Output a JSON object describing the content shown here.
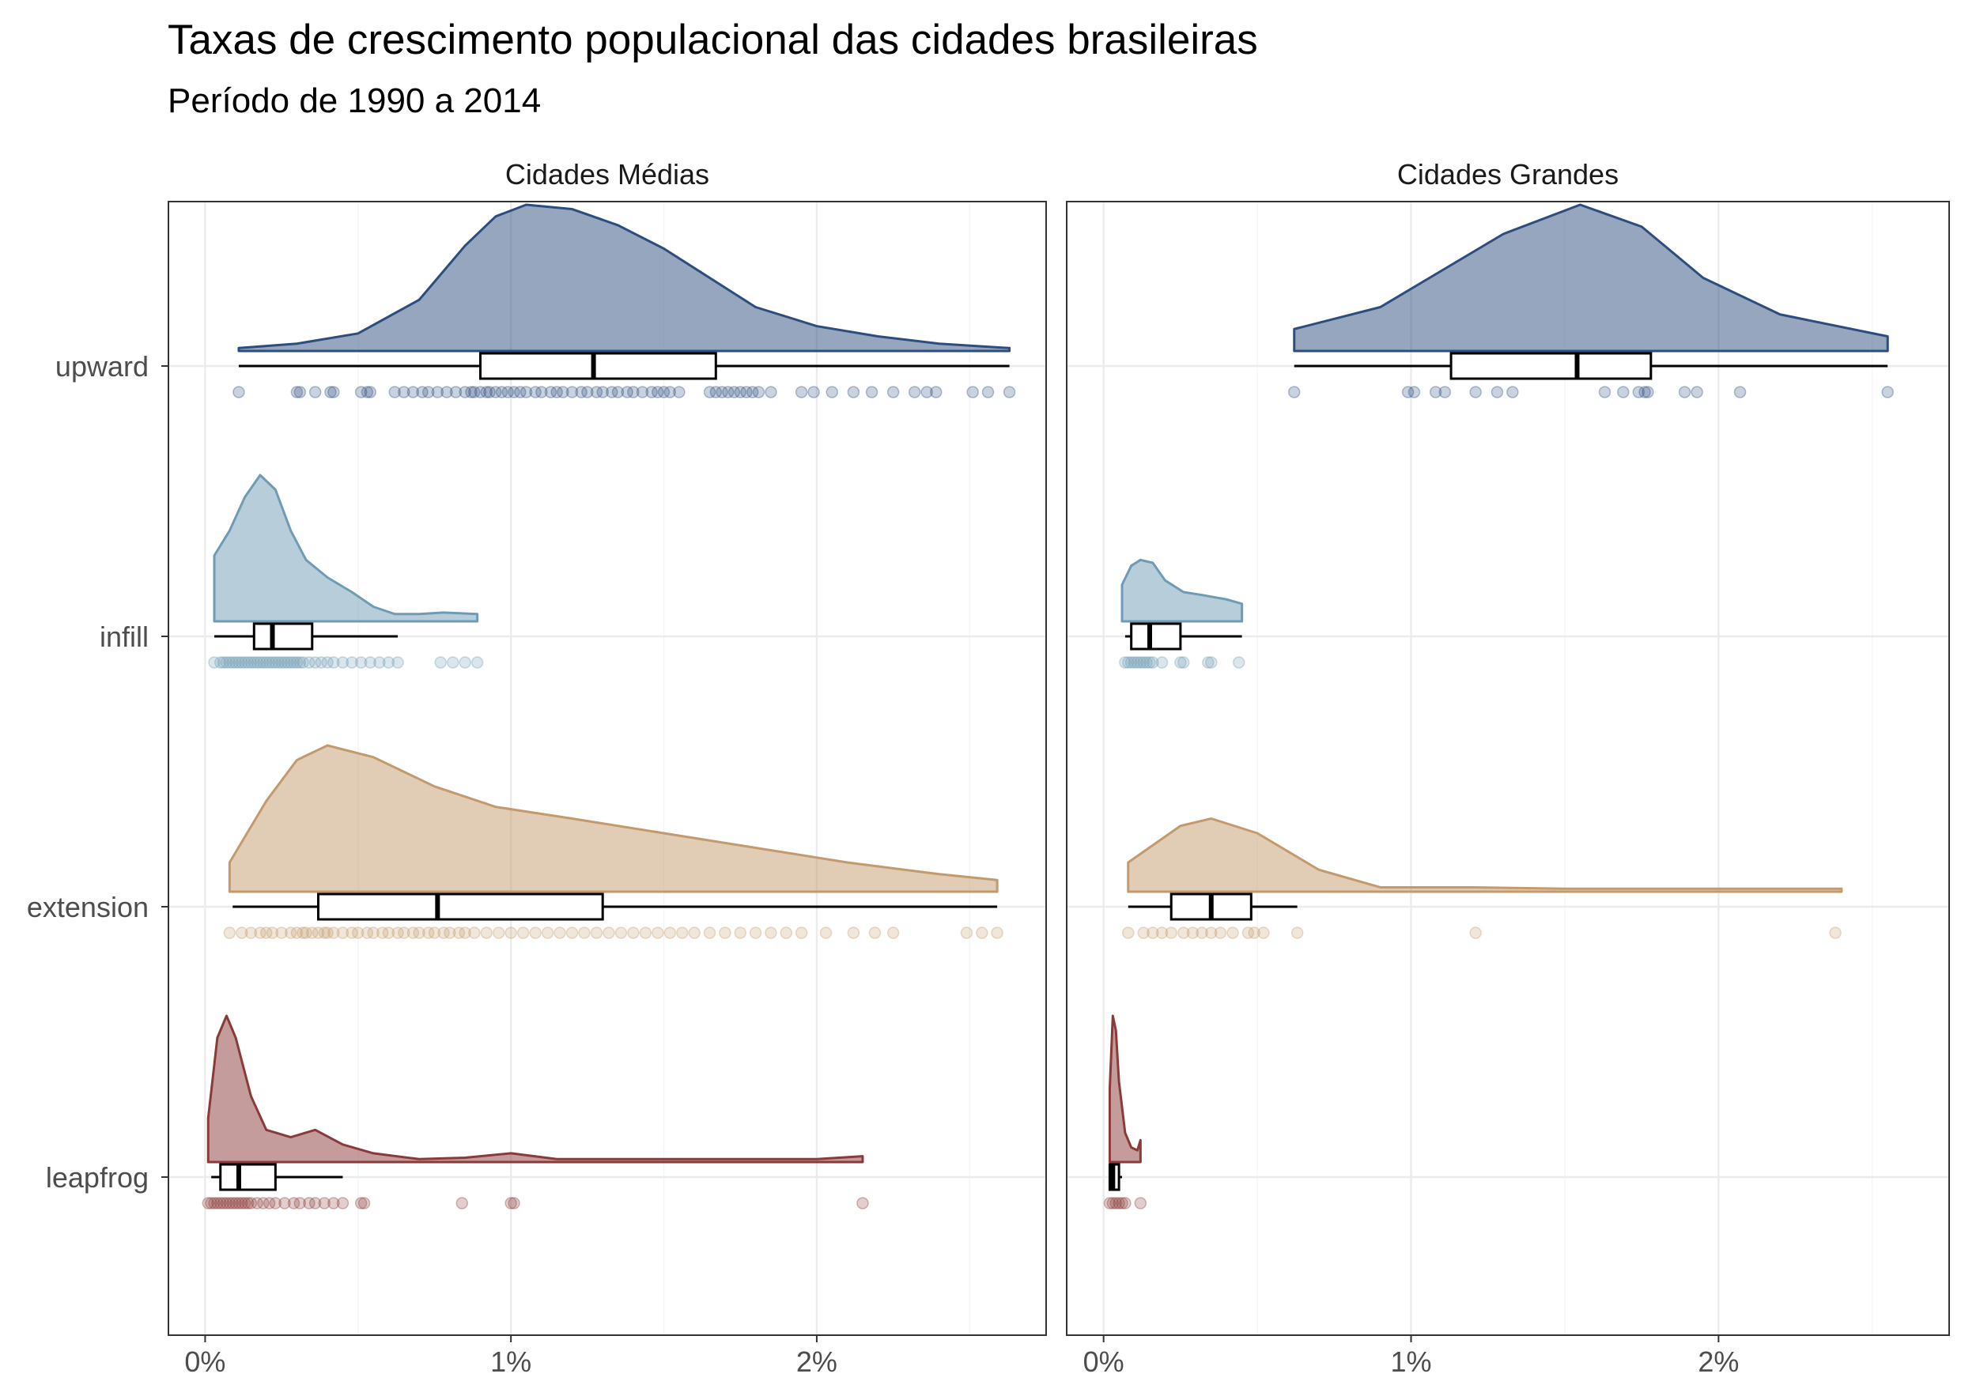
{
  "chart_data": {
    "type": "raincloud",
    "title": "Taxas de crescimento populacional das cidades brasileiras",
    "subtitle": "Período de 1990 a 2014",
    "xlim": [
      -0.0012,
      0.0275
    ],
    "x_ticks": [
      0,
      0.01,
      0.02
    ],
    "x_tick_labels": [
      "0%",
      "1%",
      "2%"
    ],
    "categories": [
      "upward",
      "infill",
      "extension",
      "leapfrog"
    ],
    "colors": {
      "upward": "#2d4d7e",
      "infill": "#6f9bb5",
      "extension": "#c49a6c",
      "leapfrog": "#8b3a3a"
    },
    "grid": true,
    "legend": "none",
    "panels": [
      {
        "label": "Cidades Médias",
        "series": [
          {
            "category": "upward",
            "box": {
              "min": 0.0011,
              "q1": 0.009,
              "median": 0.0127,
              "q3": 0.0167,
              "max": 0.0263
            },
            "density": [
              [
                0.0011,
                0.02
              ],
              [
                0.003,
                0.05
              ],
              [
                0.005,
                0.12
              ],
              [
                0.007,
                0.35
              ],
              [
                0.0085,
                0.72
              ],
              [
                0.0095,
                0.92
              ],
              [
                0.0105,
                1.0
              ],
              [
                0.012,
                0.97
              ],
              [
                0.0135,
                0.86
              ],
              [
                0.015,
                0.7
              ],
              [
                0.0165,
                0.5
              ],
              [
                0.018,
                0.3
              ],
              [
                0.02,
                0.17
              ],
              [
                0.022,
                0.1
              ],
              [
                0.024,
                0.05
              ],
              [
                0.0263,
                0.02
              ]
            ],
            "points": [
              0.0011,
              0.003,
              0.0031,
              0.0036,
              0.0041,
              0.0042,
              0.0051,
              0.0053,
              0.0054,
              0.0062,
              0.0065,
              0.0068,
              0.0071,
              0.0073,
              0.0076,
              0.0079,
              0.0082,
              0.0085,
              0.0087,
              0.0088,
              0.009,
              0.0092,
              0.0093,
              0.0095,
              0.0097,
              0.0099,
              0.0101,
              0.0103,
              0.0105,
              0.0108,
              0.011,
              0.0113,
              0.0115,
              0.0117,
              0.012,
              0.0123,
              0.0125,
              0.0128,
              0.013,
              0.0133,
              0.0135,
              0.0138,
              0.014,
              0.0143,
              0.0146,
              0.0148,
              0.015,
              0.0152,
              0.0155,
              0.0165,
              0.0167,
              0.0169,
              0.0171,
              0.0173,
              0.0175,
              0.0177,
              0.0179,
              0.0181,
              0.0185,
              0.0195,
              0.0199,
              0.0205,
              0.0212,
              0.0218,
              0.0225,
              0.0232,
              0.0236,
              0.0239,
              0.0251,
              0.0256,
              0.0263
            ]
          },
          {
            "category": "infill",
            "box": {
              "min": 0.0003,
              "q1": 0.0016,
              "median": 0.0022,
              "q3": 0.0035,
              "max": 0.0063
            },
            "density": [
              [
                0.0003,
                0.45
              ],
              [
                0.0008,
                0.62
              ],
              [
                0.0013,
                0.85
              ],
              [
                0.0018,
                1.0
              ],
              [
                0.0023,
                0.9
              ],
              [
                0.0028,
                0.62
              ],
              [
                0.0033,
                0.42
              ],
              [
                0.004,
                0.3
              ],
              [
                0.0048,
                0.2
              ],
              [
                0.0055,
                0.1
              ],
              [
                0.0062,
                0.05
              ],
              [
                0.007,
                0.05
              ],
              [
                0.0078,
                0.06
              ],
              [
                0.0089,
                0.05
              ]
            ],
            "points": [
              0.0003,
              0.0005,
              0.0006,
              0.0007,
              0.0008,
              0.0009,
              0.001,
              0.0011,
              0.0012,
              0.0013,
              0.0014,
              0.0015,
              0.0016,
              0.0017,
              0.0018,
              0.0019,
              0.002,
              0.0021,
              0.0022,
              0.0023,
              0.0024,
              0.0025,
              0.0026,
              0.0027,
              0.0028,
              0.0029,
              0.003,
              0.0031,
              0.0032,
              0.0034,
              0.0036,
              0.0038,
              0.004,
              0.0042,
              0.0045,
              0.0048,
              0.0051,
              0.0054,
              0.0057,
              0.006,
              0.0063,
              0.0077,
              0.0081,
              0.0085,
              0.0089
            ]
          },
          {
            "category": "extension",
            "box": {
              "min": 0.0009,
              "q1": 0.0037,
              "median": 0.0076,
              "q3": 0.013,
              "max": 0.0259
            },
            "density": [
              [
                0.0008,
                0.2
              ],
              [
                0.002,
                0.62
              ],
              [
                0.003,
                0.9
              ],
              [
                0.004,
                1.0
              ],
              [
                0.0055,
                0.92
              ],
              [
                0.0075,
                0.72
              ],
              [
                0.0095,
                0.58
              ],
              [
                0.012,
                0.5
              ],
              [
                0.015,
                0.4
              ],
              [
                0.018,
                0.3
              ],
              [
                0.021,
                0.2
              ],
              [
                0.024,
                0.12
              ],
              [
                0.0259,
                0.08
              ]
            ],
            "points": [
              0.0008,
              0.0012,
              0.0015,
              0.0018,
              0.002,
              0.0022,
              0.0025,
              0.0028,
              0.003,
              0.0032,
              0.0033,
              0.0035,
              0.0037,
              0.0039,
              0.004,
              0.0042,
              0.0045,
              0.0048,
              0.005,
              0.0053,
              0.0055,
              0.0058,
              0.006,
              0.0063,
              0.0065,
              0.0068,
              0.007,
              0.0073,
              0.0075,
              0.0078,
              0.008,
              0.0083,
              0.0085,
              0.0088,
              0.0092,
              0.0096,
              0.01,
              0.0104,
              0.0108,
              0.0112,
              0.0116,
              0.012,
              0.0124,
              0.0128,
              0.0132,
              0.0136,
              0.014,
              0.0144,
              0.0148,
              0.0152,
              0.0156,
              0.016,
              0.0165,
              0.017,
              0.0175,
              0.018,
              0.0185,
              0.019,
              0.0195,
              0.0203,
              0.0212,
              0.0219,
              0.0225,
              0.0249,
              0.0254,
              0.0259
            ]
          },
          {
            "category": "leapfrog",
            "box": {
              "min": 0.0002,
              "q1": 0.0005,
              "median": 0.0011,
              "q3": 0.0023,
              "max": 0.0045
            },
            "density": [
              [
                0.0001,
                0.3
              ],
              [
                0.0004,
                0.85
              ],
              [
                0.0007,
                1.0
              ],
              [
                0.001,
                0.85
              ],
              [
                0.0015,
                0.45
              ],
              [
                0.002,
                0.22
              ],
              [
                0.0028,
                0.17
              ],
              [
                0.0036,
                0.22
              ],
              [
                0.0045,
                0.12
              ],
              [
                0.0055,
                0.06
              ],
              [
                0.007,
                0.02
              ],
              [
                0.0085,
                0.03
              ],
              [
                0.01,
                0.06
              ],
              [
                0.0115,
                0.02
              ],
              [
                0.015,
                0.02
              ],
              [
                0.02,
                0.02
              ],
              [
                0.0215,
                0.04
              ]
            ],
            "points": [
              0.0001,
              0.0002,
              0.0003,
              0.0004,
              0.0005,
              0.0006,
              0.0007,
              0.0008,
              0.0009,
              0.001,
              0.0011,
              0.0012,
              0.0013,
              0.0014,
              0.0015,
              0.0017,
              0.0019,
              0.0021,
              0.0023,
              0.0026,
              0.0029,
              0.0031,
              0.0034,
              0.0036,
              0.0039,
              0.0042,
              0.0045,
              0.0051,
              0.0052,
              0.0084,
              0.01,
              0.0101,
              0.0215
            ]
          }
        ]
      },
      {
        "label": "Cidades Grandes",
        "series": [
          {
            "category": "upward",
            "box": {
              "min": 0.0062,
              "q1": 0.0113,
              "median": 0.0154,
              "q3": 0.0178,
              "max": 0.0255
            },
            "density": [
              [
                0.0062,
                0.15
              ],
              [
                0.009,
                0.3
              ],
              [
                0.011,
                0.55
              ],
              [
                0.013,
                0.8
              ],
              [
                0.0155,
                1.0
              ],
              [
                0.0175,
                0.85
              ],
              [
                0.0195,
                0.5
              ],
              [
                0.022,
                0.25
              ],
              [
                0.0255,
                0.1
              ]
            ],
            "points": [
              0.0062,
              0.0099,
              0.0101,
              0.0108,
              0.0111,
              0.0121,
              0.0128,
              0.0133,
              0.0163,
              0.0169,
              0.0174,
              0.0176,
              0.0177,
              0.0189,
              0.0193,
              0.0207,
              0.0255
            ]
          },
          {
            "category": "infill",
            "box": {
              "min": 0.0007,
              "q1": 0.0009,
              "median": 0.0015,
              "q3": 0.0025,
              "max": 0.0045
            },
            "density": [
              [
                0.0006,
                0.25
              ],
              [
                0.0009,
                0.38
              ],
              [
                0.0012,
                0.42
              ],
              [
                0.0016,
                0.4
              ],
              [
                0.002,
                0.28
              ],
              [
                0.0026,
                0.2
              ],
              [
                0.0032,
                0.18
              ],
              [
                0.004,
                0.15
              ],
              [
                0.0045,
                0.12
              ]
            ],
            "points": [
              0.0007,
              0.0008,
              0.0009,
              0.001,
              0.0011,
              0.0012,
              0.0013,
              0.0014,
              0.0015,
              0.0016,
              0.0019,
              0.0025,
              0.0026,
              0.0034,
              0.0035,
              0.0044
            ]
          },
          {
            "category": "extension",
            "box": {
              "min": 0.0008,
              "q1": 0.0022,
              "median": 0.0035,
              "q3": 0.0048,
              "max": 0.0063
            },
            "density": [
              [
                0.0008,
                0.2
              ],
              [
                0.0025,
                0.45
              ],
              [
                0.0035,
                0.5
              ],
              [
                0.005,
                0.4
              ],
              [
                0.007,
                0.15
              ],
              [
                0.009,
                0.03
              ],
              [
                0.012,
                0.03
              ],
              [
                0.015,
                0.02
              ],
              [
                0.024,
                0.02
              ]
            ],
            "points": [
              0.0008,
              0.0013,
              0.0016,
              0.0019,
              0.0022,
              0.0026,
              0.0029,
              0.0032,
              0.0035,
              0.0038,
              0.0042,
              0.0047,
              0.0049,
              0.0052,
              0.0063,
              0.0121,
              0.0238
            ]
          },
          {
            "category": "leapfrog",
            "box": {
              "min": 0.0002,
              "q1": 0.0002,
              "median": 0.0003,
              "q3": 0.0005,
              "max": 0.0006
            },
            "density": [
              [
                0.0002,
                0.5
              ],
              [
                0.0003,
                1.0
              ],
              [
                0.0004,
                0.9
              ],
              [
                0.0005,
                0.55
              ],
              [
                0.0007,
                0.2
              ],
              [
                0.0009,
                0.1
              ],
              [
                0.0011,
                0.08
              ],
              [
                0.0012,
                0.15
              ]
            ],
            "points": [
              0.0002,
              0.0003,
              0.0004,
              0.0005,
              0.0006,
              0.0007,
              0.0012
            ]
          }
        ]
      }
    ]
  }
}
